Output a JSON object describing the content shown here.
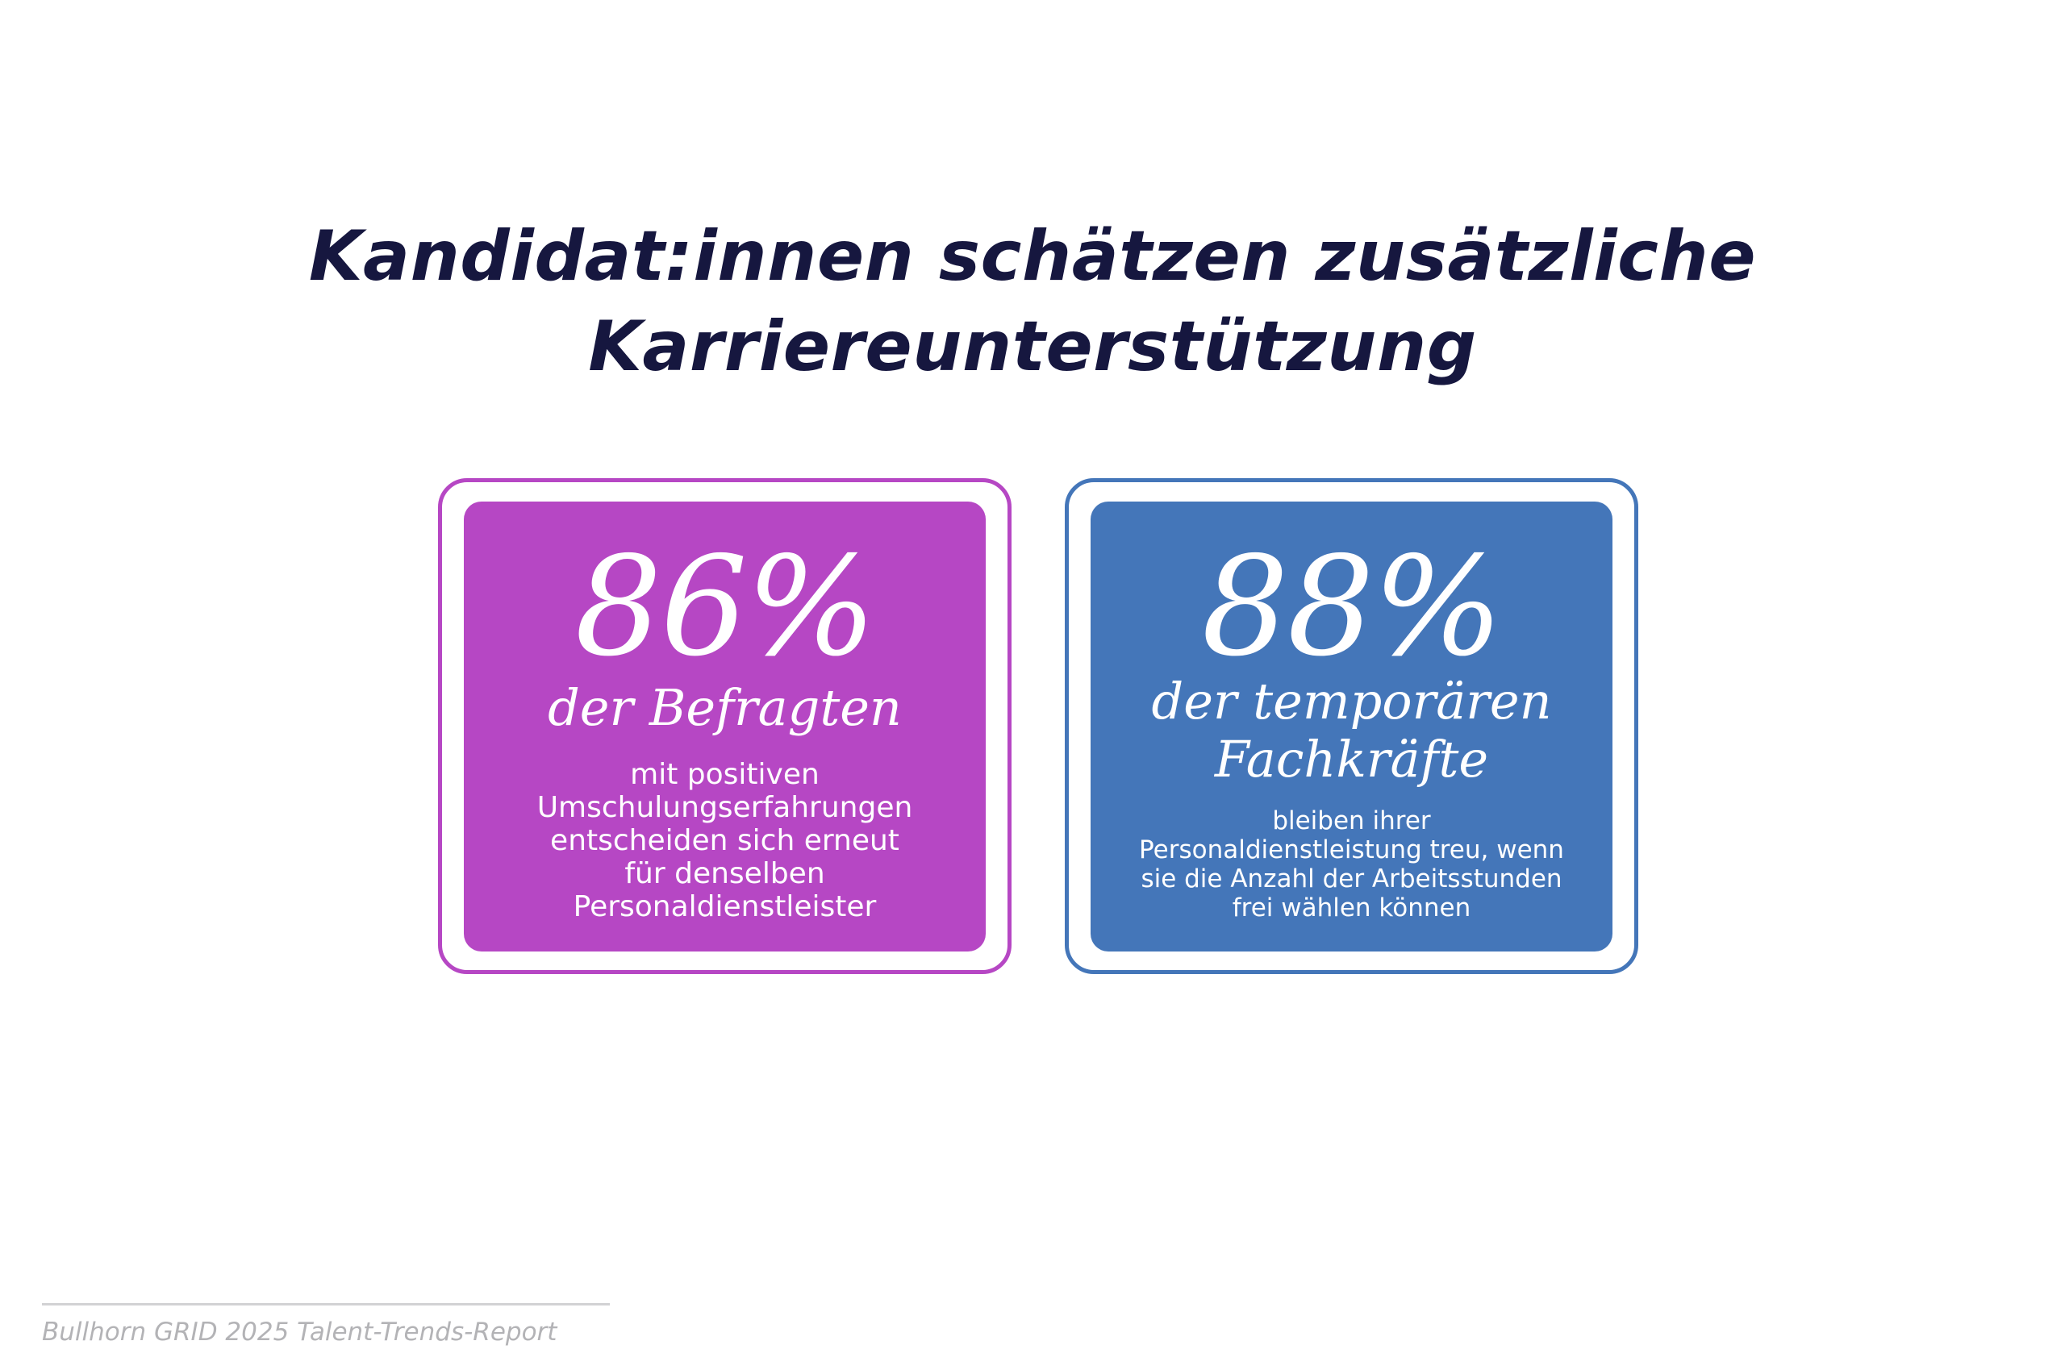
{
  "headline": {
    "line1": "Kandidat:innen schätzen zusätzliche",
    "line2": "Karriereunterstützung"
  },
  "stats": [
    {
      "percent": "86%",
      "subject_lines": [
        "der Befragten"
      ],
      "description_lines": [
        "mit positiven",
        "Umschulungserfahrungen",
        "entscheiden sich erneut",
        "für denselben",
        "Personaldienstleister"
      ],
      "color": "#b647c4"
    },
    {
      "percent": "88%",
      "subject_lines": [
        "der temporären",
        "Fachkräfte"
      ],
      "description_lines": [
        "bleiben ihrer",
        "Personaldienstleistung treu, wenn",
        "sie die Anzahl der Arbeitsstunden",
        "frei wählen können"
      ],
      "color": "#4476b9"
    }
  ],
  "footer": {
    "source": "Bullhorn GRID 2025 Talent-Trends-Report"
  },
  "colors": {
    "headline": "#16173f",
    "purple": "#b647c4",
    "blue": "#4476b9",
    "footer_text": "#b3b3b6"
  }
}
